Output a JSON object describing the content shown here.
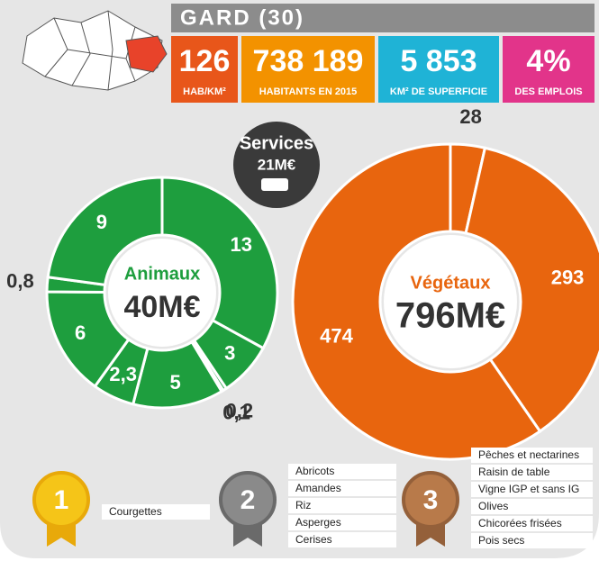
{
  "header": {
    "title": "GARD (30)",
    "stats": [
      {
        "value": "126",
        "label": "HAB/KM²"
      },
      {
        "value": "738 189",
        "label": "HABITANTS EN 2015"
      },
      {
        "value": "5 853",
        "label": "KM² DE SUPERFICIE"
      },
      {
        "value": "4%",
        "label": "DES EMPLOIS"
      }
    ]
  },
  "services": {
    "label": "Services",
    "value": "21M€"
  },
  "animaux": {
    "label": "Animaux",
    "total": "40M€",
    "color": "#1e9e3e",
    "values": [
      13,
      3,
      0.2,
      0.1,
      5,
      2.3,
      6,
      0.8,
      9
    ],
    "value_labels": [
      "13",
      "3",
      "0,2",
      "0,1",
      "5",
      "2,3",
      "6",
      "0,8",
      "9"
    ]
  },
  "vegetaux": {
    "label": "Végétaux",
    "total": "796M€",
    "color": "#e8650e",
    "values": [
      28,
      293,
      474
    ],
    "value_labels": [
      "28",
      "293",
      "474"
    ]
  },
  "medals": [
    {
      "rank": "1",
      "items": [
        "Courgettes"
      ]
    },
    {
      "rank": "2",
      "items": [
        "Abricots",
        "Amandes",
        "Riz",
        "Asperges",
        "Cerises"
      ]
    },
    {
      "rank": "3",
      "items": [
        "Pêches et nectarines",
        "Raisin de table",
        "Vigne IGP et sans IG",
        "Olives",
        "Chicorées frisées",
        "Pois secs"
      ]
    }
  ]
}
